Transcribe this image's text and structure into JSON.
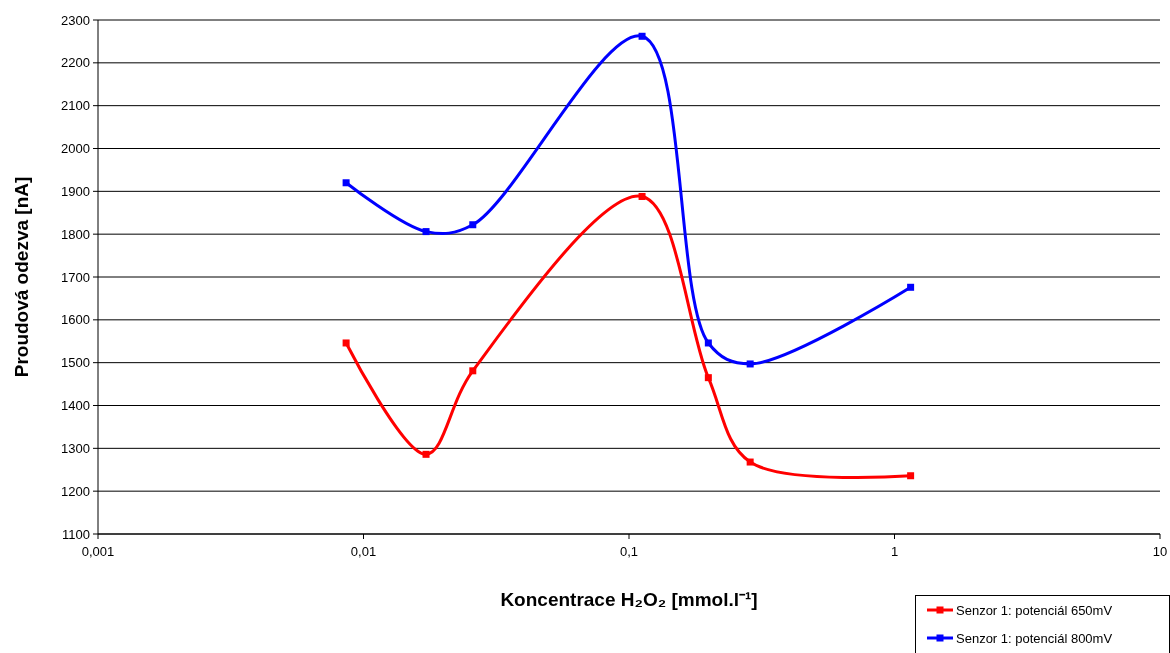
{
  "chart_data": {
    "type": "line",
    "xlabel": "Koncentrace H₂O₂ [mmol.l⁻¹]",
    "ylabel": "Proudová odezva [nA]",
    "x": [
      0.0086,
      0.0172,
      0.0258,
      0.112,
      0.199,
      0.286,
      1.15
    ],
    "series": [
      {
        "name": "Senzor 1: potenciál 650mV",
        "color": "#ff0000",
        "values": [
          1546,
          1286,
          1481,
          1888,
          1465,
          1268,
          1236
        ]
      },
      {
        "name": "Senzor 1: potenciál 800mV",
        "color": "#0000ff",
        "values": [
          1920,
          1806,
          1822,
          2262,
          1546,
          1497,
          1676
        ]
      }
    ],
    "log": "x",
    "xlim": [
      0.001,
      10
    ],
    "xticks": [
      {
        "value": 0.001,
        "label": "0,001"
      },
      {
        "value": 0.01,
        "label": "0,01"
      },
      {
        "value": 0.1,
        "label": "0,1"
      },
      {
        "value": 1,
        "label": "1"
      },
      {
        "value": 10,
        "label": "10"
      }
    ],
    "ylim": [
      1100,
      2300
    ],
    "yticks": [
      1100,
      1200,
      1300,
      1400,
      1500,
      1600,
      1700,
      1800,
      1900,
      2000,
      2100,
      2200,
      2300
    ],
    "grid": "y",
    "legend": "bottom right",
    "marker": "square",
    "line_style": "solid"
  }
}
